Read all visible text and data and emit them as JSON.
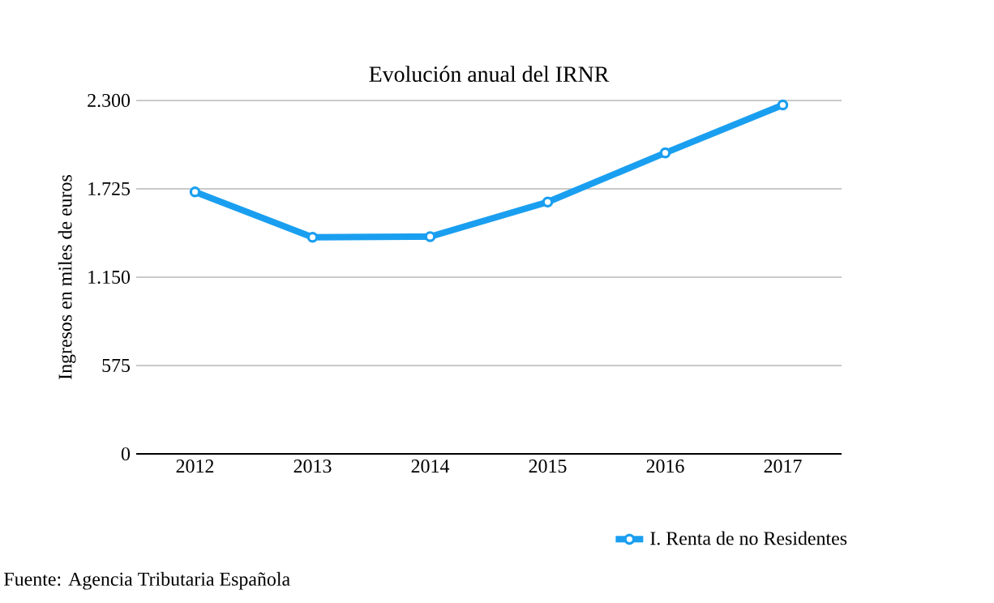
{
  "chart_data": {
    "type": "line",
    "title": "Evolución anual del IRNR",
    "ylabel": "Ingresos en miles de euros",
    "categories": [
      "2012",
      "2013",
      "2014",
      "2015",
      "2016",
      "2017"
    ],
    "series": [
      {
        "name": "I. Renta de no Residentes",
        "color": "#1a9ff0",
        "values": [
          1705,
          1410,
          1414,
          1639,
          1959,
          2271
        ]
      }
    ],
    "ylim": [
      0,
      2300
    ],
    "yticks": [
      {
        "value": 0,
        "label": "0"
      },
      {
        "value": 575,
        "label": "575"
      },
      {
        "value": 1150,
        "label": "1.150"
      },
      {
        "value": 1725,
        "label": "1.725"
      },
      {
        "value": 2300,
        "label": "2.300"
      }
    ],
    "grid": "y",
    "legend": "bottom right",
    "marker": "circle",
    "line_style": "solid",
    "annotations": [
      "Fuente: Agencia Tributaria Española"
    ]
  }
}
